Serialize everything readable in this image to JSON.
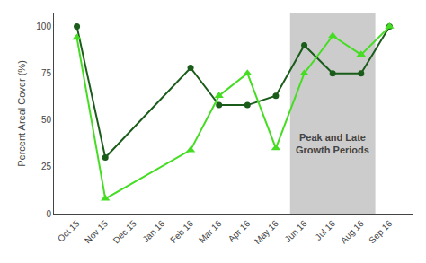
{
  "chart_data": {
    "type": "line",
    "categories": [
      "Oct 15",
      "Nov 15",
      "Dec 15",
      "Jan 16",
      "Feb 16",
      "Mar 16",
      "Apr 16",
      "May 16",
      "Jun 16",
      "Jul 16",
      "Aug 16",
      "Sep 16"
    ],
    "series": [
      {
        "color": "#1a5c1a",
        "marker": "circle",
        "values": [
          100,
          30,
          null,
          null,
          78,
          58,
          58,
          63,
          90,
          75,
          75,
          100
        ]
      },
      {
        "color": "#44dd22",
        "marker": "triangle-up",
        "values": [
          94,
          8,
          null,
          null,
          34,
          63,
          75,
          35,
          75,
          95,
          85,
          100
        ]
      }
    ],
    "ylabel": "Percent Areal Cover (%)",
    "highlight": {
      "start": "Jun 16",
      "end": "Aug 16",
      "color": "#cccccc"
    },
    "annotations": [
      {
        "text": "Peak and Late\nGrowth Periods"
      }
    ],
    "ylim": [
      0,
      107
    ],
    "yticks": [
      0,
      25,
      50,
      75,
      100
    ],
    "grid": false
  }
}
